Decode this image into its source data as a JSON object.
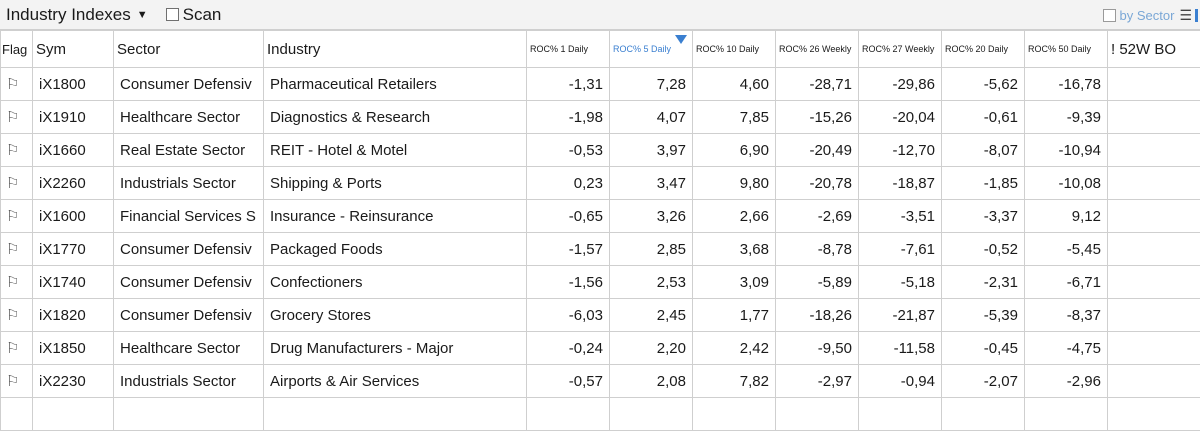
{
  "toolbar": {
    "dropdown_label": "Industry Indexes",
    "dropdown_icon": "caret-down-icon",
    "scan_label": "Scan",
    "by_sector_label": "by Sector",
    "menu_icon": "hamburger-menu-icon"
  },
  "columns": {
    "flag": "Flag",
    "sym": "Sym",
    "sector": "Sector",
    "industry": "Industry",
    "roc1": "ROC% 1 Daily",
    "roc5": "ROC% 5 Daily",
    "roc10": "ROC% 10 Daily",
    "roc26": "ROC% 26 Weekly",
    "roc27": "ROC% 27 Weekly",
    "roc20": "ROC% 20 Daily",
    "roc50": "ROC% 50 Daily",
    "bo52": "! 52W BO"
  },
  "sorted_column": "ROC% 5 Daily",
  "rows": [
    {
      "sym": "iX1800",
      "sector": "Consumer Defensiv",
      "industry": "Pharmaceutical Retailers",
      "roc1": "-1,31",
      "roc5": "7,28",
      "roc10": "4,60",
      "roc26": "-28,71",
      "roc27": "-29,86",
      "roc20": "-5,62",
      "roc50": "-16,78",
      "bo52": ""
    },
    {
      "sym": "iX1910",
      "sector": "Healthcare Sector",
      "industry": "Diagnostics & Research",
      "roc1": "-1,98",
      "roc5": "4,07",
      "roc10": "7,85",
      "roc26": "-15,26",
      "roc27": "-20,04",
      "roc20": "-0,61",
      "roc50": "-9,39",
      "bo52": ""
    },
    {
      "sym": "iX1660",
      "sector": "Real Estate Sector",
      "industry": "REIT - Hotel & Motel",
      "roc1": "-0,53",
      "roc5": "3,97",
      "roc10": "6,90",
      "roc26": "-20,49",
      "roc27": "-12,70",
      "roc20": "-8,07",
      "roc50": "-10,94",
      "bo52": ""
    },
    {
      "sym": "iX2260",
      "sector": "Industrials Sector",
      "industry": "Shipping & Ports",
      "roc1": "0,23",
      "roc5": "3,47",
      "roc10": "9,80",
      "roc26": "-20,78",
      "roc27": "-18,87",
      "roc20": "-1,85",
      "roc50": "-10,08",
      "bo52": ""
    },
    {
      "sym": "iX1600",
      "sector": "Financial Services S",
      "industry": "Insurance - Reinsurance",
      "roc1": "-0,65",
      "roc5": "3,26",
      "roc10": "2,66",
      "roc26": "-2,69",
      "roc27": "-3,51",
      "roc20": "-3,37",
      "roc50": "9,12",
      "bo52": ""
    },
    {
      "sym": "iX1770",
      "sector": "Consumer Defensiv",
      "industry": "Packaged Foods",
      "roc1": "-1,57",
      "roc5": "2,85",
      "roc10": "3,68",
      "roc26": "-8,78",
      "roc27": "-7,61",
      "roc20": "-0,52",
      "roc50": "-5,45",
      "bo52": ""
    },
    {
      "sym": "iX1740",
      "sector": "Consumer Defensiv",
      "industry": "Confectioners",
      "roc1": "-1,56",
      "roc5": "2,53",
      "roc10": "3,09",
      "roc26": "-5,89",
      "roc27": "-5,18",
      "roc20": "-2,31",
      "roc50": "-6,71",
      "bo52": ""
    },
    {
      "sym": "iX1820",
      "sector": "Consumer Defensiv",
      "industry": "Grocery Stores",
      "roc1": "-6,03",
      "roc5": "2,45",
      "roc10": "1,77",
      "roc26": "-18,26",
      "roc27": "-21,87",
      "roc20": "-5,39",
      "roc50": "-8,37",
      "bo52": ""
    },
    {
      "sym": "iX1850",
      "sector": "Healthcare Sector",
      "industry": "Drug Manufacturers - Major",
      "roc1": "-0,24",
      "roc5": "2,20",
      "roc10": "2,42",
      "roc26": "-9,50",
      "roc27": "-11,58",
      "roc20": "-0,45",
      "roc50": "-4,75",
      "bo52": ""
    },
    {
      "sym": "iX2230",
      "sector": "Industrials Sector",
      "industry": "Airports & Air Services",
      "roc1": "-0,57",
      "roc5": "2,08",
      "roc10": "7,82",
      "roc26": "-2,97",
      "roc27": "-0,94",
      "roc20": "-2,07",
      "roc50": "-2,96",
      "bo52": ""
    }
  ],
  "colors": {
    "sort_accent": "#3a7fd0",
    "grid_line": "#cfcfcf",
    "toolbar_bg": "#f3f3f3"
  }
}
